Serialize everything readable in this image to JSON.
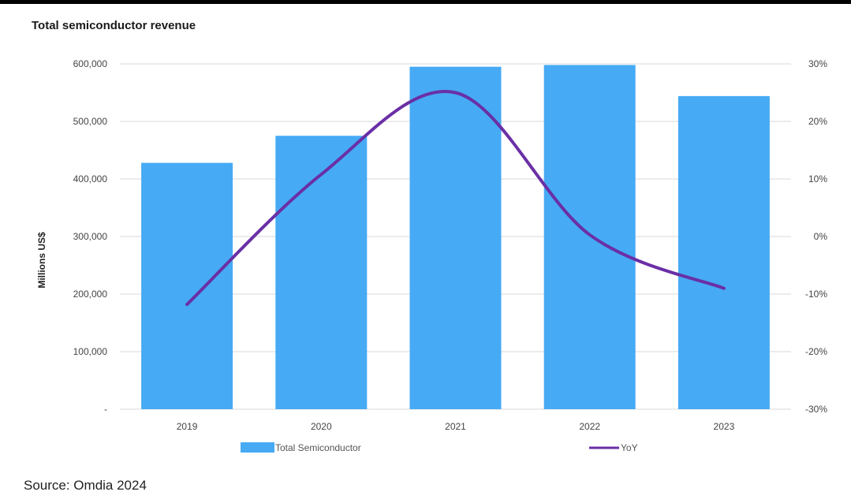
{
  "colors": {
    "bar": "#46aaf4",
    "line": "#6a2fa6",
    "grid": "#d9d9d9"
  },
  "chart_data": {
    "type": "bar",
    "title": "Total semiconductor revenue",
    "ylabel": "Millions US$",
    "categories": [
      "2019",
      "2020",
      "2021",
      "2022",
      "2023"
    ],
    "ylim": [
      0,
      600000
    ],
    "y2lim": [
      -30,
      30
    ],
    "yticks": [
      "-",
      "100,000",
      "200,000",
      "300,000",
      "400,000",
      "500,000",
      "600,000"
    ],
    "y2ticks": [
      "-30%",
      "-20%",
      "-10%",
      "0%",
      "10%",
      "20%",
      "30%"
    ],
    "series": [
      {
        "name": "Total Semiconductor",
        "type": "bar",
        "axis": "left",
        "values": [
          428000,
          475000,
          595000,
          598000,
          544000
        ]
      },
      {
        "name": "YoY",
        "type": "line",
        "axis": "right",
        "values": [
          -11.8,
          10.8,
          25.0,
          0.3,
          -9.0
        ]
      }
    ],
    "grid": true,
    "legend": "bottom"
  },
  "source": "Source: Omdia 2024"
}
